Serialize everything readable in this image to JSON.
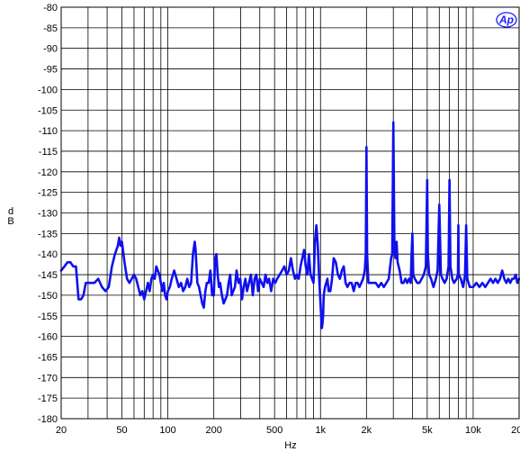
{
  "chart_data": {
    "type": "line",
    "title": "",
    "xlabel": "Hz",
    "ylabel": "dB",
    "x_scale": "log",
    "xlim": [
      20,
      20000
    ],
    "ylim": [
      -180,
      -80
    ],
    "grid": true,
    "legend": "none",
    "line_color": "#1010ee",
    "grid_color": "#000000",
    "x_ticks": [
      {
        "value": 20,
        "label": "20"
      },
      {
        "value": 50,
        "label": "50"
      },
      {
        "value": 100,
        "label": "100"
      },
      {
        "value": 200,
        "label": "200"
      },
      {
        "value": 500,
        "label": "500"
      },
      {
        "value": 1000,
        "label": "1k"
      },
      {
        "value": 2000,
        "label": "2k"
      },
      {
        "value": 5000,
        "label": "5k"
      },
      {
        "value": 10000,
        "label": "10k"
      },
      {
        "value": 20000,
        "label": "20k"
      }
    ],
    "y_ticks": [
      -80,
      -85,
      -90,
      -95,
      -100,
      -105,
      -110,
      -115,
      -120,
      -125,
      -130,
      -135,
      -140,
      -145,
      -150,
      -155,
      -160,
      -165,
      -170,
      -175,
      -180
    ],
    "series": [
      {
        "points": [
          [
            20,
            -144
          ],
          [
            21,
            -143
          ],
          [
            22,
            -142
          ],
          [
            23,
            -142
          ],
          [
            24,
            -143
          ],
          [
            25,
            -143
          ],
          [
            26,
            -151
          ],
          [
            27,
            -151
          ],
          [
            28,
            -150
          ],
          [
            29,
            -147
          ],
          [
            31,
            -147
          ],
          [
            33,
            -147
          ],
          [
            35,
            -146
          ],
          [
            37,
            -148
          ],
          [
            39,
            -149
          ],
          [
            41,
            -148
          ],
          [
            43,
            -143
          ],
          [
            45,
            -140
          ],
          [
            47,
            -138
          ],
          [
            48,
            -136
          ],
          [
            49,
            -138
          ],
          [
            50,
            -137
          ],
          [
            52,
            -142
          ],
          [
            54,
            -146
          ],
          [
            56,
            -147
          ],
          [
            58,
            -146
          ],
          [
            60,
            -145
          ],
          [
            62,
            -146
          ],
          [
            64,
            -148
          ],
          [
            66,
            -150
          ],
          [
            68,
            -149
          ],
          [
            70,
            -151
          ],
          [
            72,
            -149
          ],
          [
            74,
            -147
          ],
          [
            76,
            -149
          ],
          [
            78,
            -146
          ],
          [
            80,
            -145
          ],
          [
            82,
            -146
          ],
          [
            84,
            -143
          ],
          [
            86,
            -144
          ],
          [
            88,
            -145
          ],
          [
            90,
            -147
          ],
          [
            92,
            -149
          ],
          [
            94,
            -147
          ],
          [
            96,
            -150
          ],
          [
            98,
            -151
          ],
          [
            100,
            -149
          ],
          [
            103,
            -148
          ],
          [
            106,
            -146
          ],
          [
            110,
            -144
          ],
          [
            114,
            -146
          ],
          [
            118,
            -148
          ],
          [
            122,
            -147
          ],
          [
            126,
            -149
          ],
          [
            130,
            -148
          ],
          [
            134,
            -146
          ],
          [
            138,
            -148
          ],
          [
            142,
            -147
          ],
          [
            146,
            -140
          ],
          [
            150,
            -137
          ],
          [
            152,
            -139
          ],
          [
            156,
            -147
          ],
          [
            160,
            -148
          ],
          [
            164,
            -150
          ],
          [
            168,
            -152
          ],
          [
            172,
            -153
          ],
          [
            176,
            -149
          ],
          [
            180,
            -147
          ],
          [
            185,
            -147
          ],
          [
            190,
            -144
          ],
          [
            195,
            -150
          ],
          [
            200,
            -150
          ],
          [
            204,
            -141
          ],
          [
            208,
            -140
          ],
          [
            212,
            -145
          ],
          [
            216,
            -148
          ],
          [
            220,
            -147
          ],
          [
            226,
            -150
          ],
          [
            232,
            -152
          ],
          [
            238,
            -151
          ],
          [
            244,
            -150
          ],
          [
            250,
            -147
          ],
          [
            256,
            -145
          ],
          [
            262,
            -150
          ],
          [
            268,
            -149
          ],
          [
            275,
            -148
          ],
          [
            282,
            -144
          ],
          [
            290,
            -147
          ],
          [
            298,
            -146
          ],
          [
            306,
            -151
          ],
          [
            314,
            -148
          ],
          [
            322,
            -146
          ],
          [
            330,
            -149
          ],
          [
            340,
            -147
          ],
          [
            350,
            -145
          ],
          [
            360,
            -150
          ],
          [
            370,
            -146
          ],
          [
            380,
            -145
          ],
          [
            390,
            -149
          ],
          [
            400,
            -146
          ],
          [
            412,
            -147
          ],
          [
            424,
            -148
          ],
          [
            436,
            -145
          ],
          [
            448,
            -147
          ],
          [
            460,
            -146
          ],
          [
            475,
            -149
          ],
          [
            490,
            -146
          ],
          [
            505,
            -147
          ],
          [
            520,
            -146
          ],
          [
            540,
            -145
          ],
          [
            560,
            -144
          ],
          [
            580,
            -143
          ],
          [
            600,
            -145
          ],
          [
            620,
            -144
          ],
          [
            640,
            -141
          ],
          [
            660,
            -144
          ],
          [
            680,
            -146
          ],
          [
            700,
            -145
          ],
          [
            720,
            -146
          ],
          [
            740,
            -143
          ],
          [
            760,
            -141
          ],
          [
            780,
            -139
          ],
          [
            800,
            -143
          ],
          [
            820,
            -145
          ],
          [
            840,
            -140
          ],
          [
            860,
            -145
          ],
          [
            880,
            -146
          ],
          [
            900,
            -147
          ],
          [
            920,
            -137
          ],
          [
            940,
            -133
          ],
          [
            960,
            -138
          ],
          [
            980,
            -146
          ],
          [
            1000,
            -152
          ],
          [
            1010,
            -155
          ],
          [
            1020,
            -158
          ],
          [
            1030,
            -157
          ],
          [
            1040,
            -155
          ],
          [
            1050,
            -150
          ],
          [
            1070,
            -148
          ],
          [
            1090,
            -147
          ],
          [
            1110,
            -146
          ],
          [
            1130,
            -149
          ],
          [
            1160,
            -149
          ],
          [
            1190,
            -146
          ],
          [
            1220,
            -141
          ],
          [
            1260,
            -142
          ],
          [
            1300,
            -145
          ],
          [
            1340,
            -146
          ],
          [
            1380,
            -144
          ],
          [
            1420,
            -143
          ],
          [
            1460,
            -147
          ],
          [
            1500,
            -148
          ],
          [
            1550,
            -147
          ],
          [
            1600,
            -147
          ],
          [
            1650,
            -149
          ],
          [
            1700,
            -147
          ],
          [
            1750,
            -147
          ],
          [
            1800,
            -148
          ],
          [
            1850,
            -147
          ],
          [
            1900,
            -146
          ],
          [
            1950,
            -144
          ],
          [
            1980,
            -140
          ],
          [
            2000,
            -114
          ],
          [
            2020,
            -140
          ],
          [
            2060,
            -147
          ],
          [
            2120,
            -147
          ],
          [
            2200,
            -147
          ],
          [
            2300,
            -147
          ],
          [
            2400,
            -148
          ],
          [
            2500,
            -147
          ],
          [
            2600,
            -148
          ],
          [
            2700,
            -147
          ],
          [
            2800,
            -146
          ],
          [
            2900,
            -141
          ],
          [
            2950,
            -140
          ],
          [
            3000,
            -108
          ],
          [
            3050,
            -139
          ],
          [
            3100,
            -141
          ],
          [
            3150,
            -137
          ],
          [
            3200,
            -142
          ],
          [
            3300,
            -144
          ],
          [
            3400,
            -147
          ],
          [
            3500,
            -147
          ],
          [
            3600,
            -146
          ],
          [
            3700,
            -147
          ],
          [
            3800,
            -146
          ],
          [
            3900,
            -147
          ],
          [
            3950,
            -140
          ],
          [
            4000,
            -135
          ],
          [
            4050,
            -145
          ],
          [
            4150,
            -146
          ],
          [
            4300,
            -147
          ],
          [
            4450,
            -147
          ],
          [
            4600,
            -146
          ],
          [
            4750,
            -145
          ],
          [
            4900,
            -143
          ],
          [
            5000,
            -122
          ],
          [
            5050,
            -140
          ],
          [
            5150,
            -145
          ],
          [
            5300,
            -146
          ],
          [
            5500,
            -148
          ],
          [
            5700,
            -146
          ],
          [
            5850,
            -144
          ],
          [
            6000,
            -128
          ],
          [
            6150,
            -145
          ],
          [
            6300,
            -146
          ],
          [
            6500,
            -147
          ],
          [
            6700,
            -146
          ],
          [
            6900,
            -143
          ],
          [
            7000,
            -122
          ],
          [
            7100,
            -143
          ],
          [
            7300,
            -146
          ],
          [
            7500,
            -147
          ],
          [
            7800,
            -146
          ],
          [
            7950,
            -145
          ],
          [
            8000,
            -133
          ],
          [
            8050,
            -145
          ],
          [
            8300,
            -146
          ],
          [
            8600,
            -148
          ],
          [
            8850,
            -145
          ],
          [
            9000,
            -133
          ],
          [
            9150,
            -146
          ],
          [
            9500,
            -148
          ],
          [
            10000,
            -148
          ],
          [
            10500,
            -147
          ],
          [
            11000,
            -148
          ],
          [
            11500,
            -147
          ],
          [
            12000,
            -148
          ],
          [
            12500,
            -147
          ],
          [
            13000,
            -146
          ],
          [
            13500,
            -147
          ],
          [
            14000,
            -146
          ],
          [
            14500,
            -147
          ],
          [
            15000,
            -146
          ],
          [
            15500,
            -144
          ],
          [
            16000,
            -146
          ],
          [
            16500,
            -147
          ],
          [
            17000,
            -146
          ],
          [
            17500,
            -147
          ],
          [
            18000,
            -146
          ],
          [
            18500,
            -146
          ],
          [
            19000,
            -145
          ],
          [
            19500,
            -147
          ],
          [
            20000,
            -146
          ]
        ]
      }
    ]
  }
}
